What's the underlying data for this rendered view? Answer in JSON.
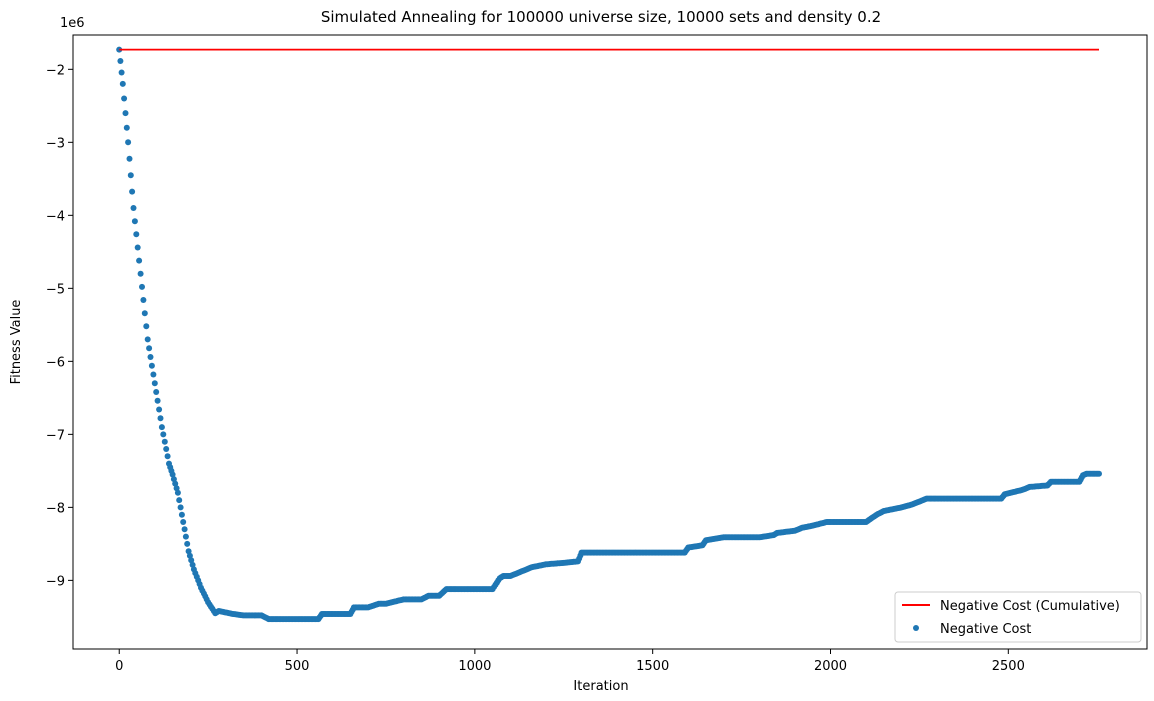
{
  "chart_data": {
    "type": "scatter",
    "title": "Simulated Annealing for 100000 universe size, 10000 sets and density 0.2",
    "xlabel": "Iteration",
    "ylabel": "Fitness Value",
    "y_offset_text": "1e6",
    "xlim": [
      -130,
      2890
    ],
    "ylim": [
      -9.94,
      -1.53
    ],
    "x_ticks": [
      0,
      500,
      1000,
      1500,
      2000,
      2500
    ],
    "x_tick_labels": [
      "0",
      "500",
      "1000",
      "1500",
      "2000",
      "2500"
    ],
    "y_ticks": [
      -2,
      -3,
      -4,
      -5,
      -6,
      -7,
      -8,
      -9
    ],
    "y_tick_labels": [
      "−2",
      "−3",
      "−4",
      "−5",
      "−6",
      "−7",
      "−8",
      "−9"
    ],
    "grid": false,
    "legend_position": "lower-right",
    "colors": {
      "line": "#ff0000",
      "points": "#1f77b4"
    },
    "series": [
      {
        "name": "Negative Cost (Cumulative)",
        "kind": "line",
        "x": [
          0,
          2755
        ],
        "y": [
          -1.73,
          -1.73
        ]
      },
      {
        "name": "Negative Cost",
        "kind": "scatter",
        "x": [
          0,
          10,
          25,
          40,
          60,
          80,
          100,
          120,
          140,
          150,
          165,
          180,
          195,
          210,
          230,
          250,
          270,
          280,
          300,
          320,
          350,
          400,
          420,
          450,
          500,
          560,
          570,
          600,
          650,
          660,
          700,
          730,
          750,
          800,
          850,
          870,
          900,
          920,
          950,
          1000,
          1050,
          1070,
          1080,
          1100,
          1140,
          1160,
          1200,
          1250,
          1290,
          1300,
          1400,
          1500,
          1590,
          1600,
          1640,
          1650,
          1700,
          1800,
          1840,
          1850,
          1900,
          1920,
          1950,
          1990,
          2000,
          2050,
          2100,
          2130,
          2150,
          2200,
          2230,
          2260,
          2270,
          2300,
          2400,
          2480,
          2490,
          2540,
          2560,
          2610,
          2620,
          2700,
          2710,
          2720,
          2755
        ],
        "y": [
          -1.73,
          -2.2,
          -3.0,
          -3.9,
          -4.8,
          -5.7,
          -6.3,
          -6.9,
          -7.4,
          -7.55,
          -7.8,
          -8.2,
          -8.6,
          -8.85,
          -9.1,
          -9.3,
          -9.45,
          -9.42,
          -9.44,
          -9.46,
          -9.48,
          -9.48,
          -9.53,
          -9.53,
          -9.53,
          -9.53,
          -9.46,
          -9.46,
          -9.46,
          -9.37,
          -9.37,
          -9.32,
          -9.32,
          -9.26,
          -9.26,
          -9.21,
          -9.21,
          -9.12,
          -9.12,
          -9.12,
          -9.12,
          -8.97,
          -8.94,
          -8.94,
          -8.86,
          -8.82,
          -8.78,
          -8.76,
          -8.74,
          -8.62,
          -8.62,
          -8.62,
          -8.62,
          -8.55,
          -8.52,
          -8.45,
          -8.41,
          -8.41,
          -8.38,
          -8.35,
          -8.32,
          -8.28,
          -8.25,
          -8.2,
          -8.2,
          -8.2,
          -8.2,
          -8.1,
          -8.05,
          -8.0,
          -7.96,
          -7.9,
          -7.88,
          -7.88,
          -7.88,
          -7.88,
          -7.82,
          -7.76,
          -7.72,
          -7.7,
          -7.65,
          -7.65,
          -7.56,
          -7.54,
          -7.54
        ]
      }
    ]
  }
}
